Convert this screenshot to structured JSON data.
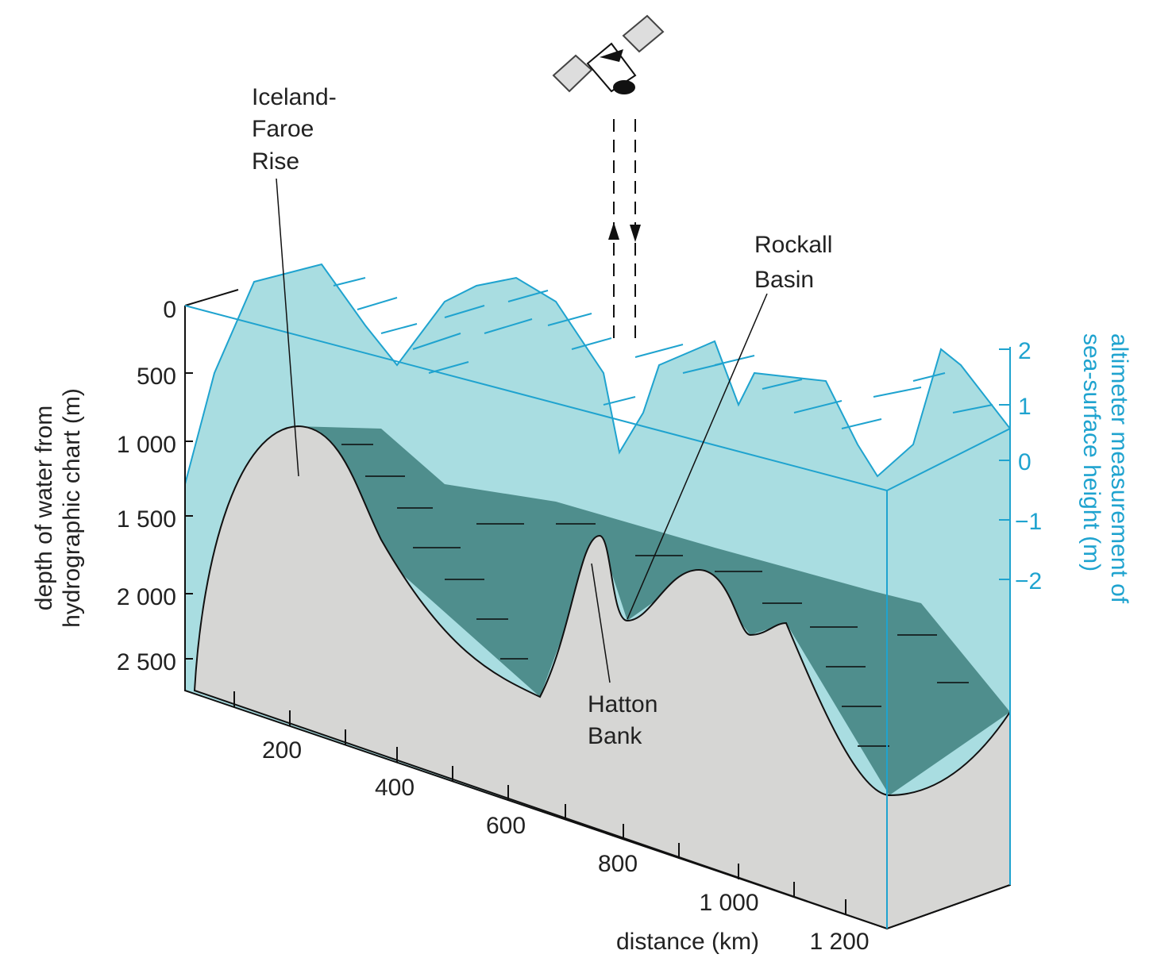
{
  "left_axis": {
    "label_lines": [
      "depth of water from",
      "hydrographic chart (m)"
    ],
    "ticks": [
      "0",
      "500",
      "1 000",
      "1 500",
      "2 000",
      "2 500"
    ]
  },
  "bottom_axis": {
    "label": "distance (km)",
    "ticks": [
      "200",
      "400",
      "600",
      "800",
      "1 000",
      "1 200"
    ]
  },
  "right_axis": {
    "label_lines": [
      "altimeter measurement of",
      "sea-surface height (m)"
    ],
    "ticks": [
      "2",
      "1",
      "0",
      "−1",
      "−2"
    ]
  },
  "annotations": [
    {
      "lines": [
        "Iceland-",
        "Faroe",
        "Rise"
      ]
    },
    {
      "lines": [
        "Rockall",
        "Basin"
      ]
    },
    {
      "lines": [
        "Hatton",
        "Bank"
      ]
    }
  ]
}
